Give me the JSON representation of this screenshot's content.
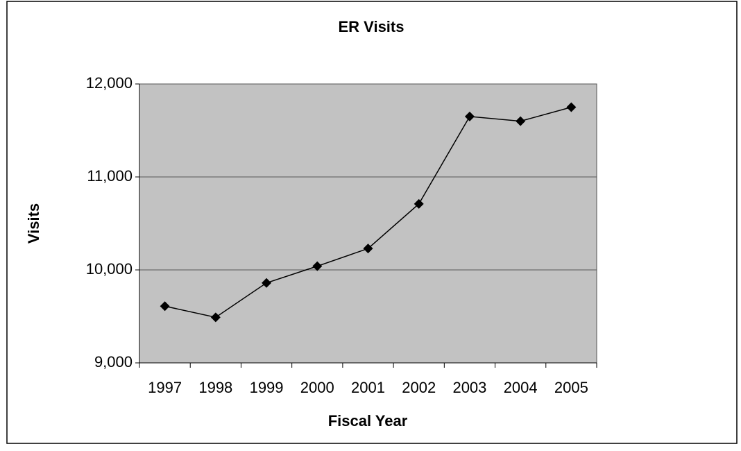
{
  "chart_data": {
    "type": "line",
    "title": "ER Visits",
    "x_label": "Fiscal Year",
    "y_label": "Visits",
    "categories": [
      "1997",
      "1998",
      "1999",
      "2000",
      "2001",
      "2002",
      "2003",
      "2004",
      "2005"
    ],
    "series": [
      {
        "name": "ER Visits",
        "color": "#000000",
        "values": [
          9610,
          9490,
          9860,
          10040,
          10230,
          10710,
          11650,
          11600,
          11750
        ]
      }
    ],
    "ylim": [
      9000,
      12000
    ],
    "yticks": [
      {
        "value": 9000,
        "label": "9,000"
      },
      {
        "value": 10000,
        "label": "10,000"
      },
      {
        "value": 11000,
        "label": "11,000"
      },
      {
        "value": 12000,
        "label": "12,000"
      }
    ],
    "grid": true
  }
}
